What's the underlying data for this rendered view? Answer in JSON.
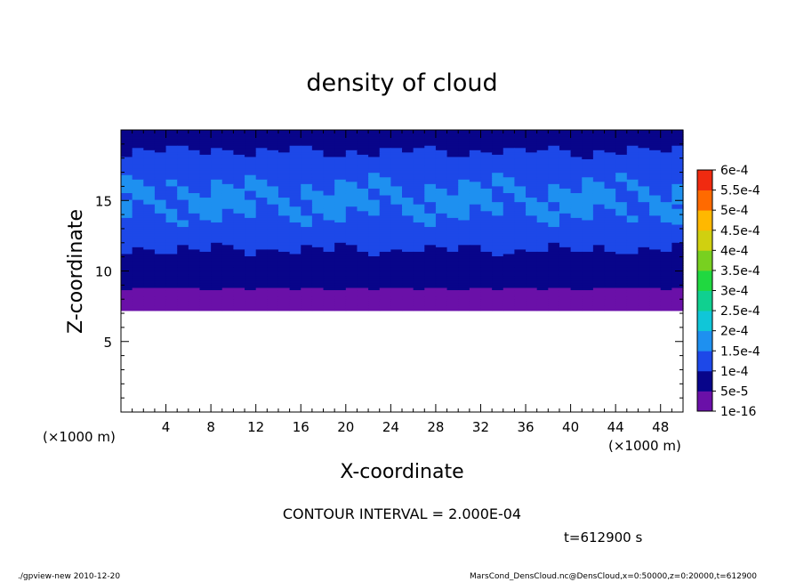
{
  "chart_data": {
    "type": "heatmap",
    "title": "density of cloud",
    "xlabel": "X-coordinate",
    "ylabel": "Z-coordinate",
    "x_unit": "(×1000 m)",
    "y_unit": "(×1000 m)",
    "xlim": [
      0,
      50
    ],
    "ylim": [
      0,
      20
    ],
    "x_ticks": [
      4,
      8,
      12,
      16,
      20,
      24,
      28,
      32,
      36,
      40,
      44,
      48
    ],
    "y_ticks": [
      5,
      10,
      15
    ],
    "cloud_base_z": 7.2,
    "colorbar": {
      "labels": [
        "1e-16",
        "5e-5",
        "1e-4",
        "1.5e-4",
        "2e-4",
        "2.5e-4",
        "3e-4",
        "3.5e-4",
        "4e-4",
        "4.5e-4",
        "5e-4",
        "5.5e-4",
        "6e-4"
      ],
      "levels": [
        1e-16,
        5e-05,
        0.0001,
        0.00015,
        0.0002,
        0.00025,
        0.0003,
        0.00035,
        0.0004,
        0.00045,
        0.0005,
        0.00055,
        0.0006
      ],
      "colors": [
        "#6a10a8",
        "#08058a",
        "#1d48e8",
        "#1e90f0",
        "#10c6d8",
        "#10d090",
        "#20d840",
        "#78d020",
        "#d0d010",
        "#ffb800",
        "#ff6a00",
        "#f02a10",
        "#f87e80"
      ]
    },
    "profile": [
      {
        "z": 20.0,
        "value": 8e-05
      },
      {
        "z": 19.0,
        "value": 9e-05
      },
      {
        "z": 18.0,
        "value": 0.00011
      },
      {
        "z": 17.0,
        "value": 0.000135
      },
      {
        "z": 16.0,
        "value": 0.00015
      },
      {
        "z": 15.0,
        "value": 0.000155
      },
      {
        "z": 14.0,
        "value": 0.00015
      },
      {
        "z": 13.0,
        "value": 0.000135
      },
      {
        "z": 12.0,
        "value": 0.00011
      },
      {
        "z": 11.0,
        "value": 9e-05
      },
      {
        "z": 10.0,
        "value": 7.5e-05
      },
      {
        "z": 9.0,
        "value": 6e-05
      },
      {
        "z": 8.5,
        "value": 4e-05
      },
      {
        "z": 8.0,
        "value": 2e-05
      },
      {
        "z": 7.6,
        "value": 1e-05
      },
      {
        "z": 7.2,
        "value": 1e-16
      }
    ]
  },
  "contour_interval": "CONTOUR INTERVAL = 2.000E-04",
  "time_label": "t=612900 s",
  "footer_left": "./gpview-new  2010-12-20",
  "footer_right": "MarsCond_DensCloud.nc@DensCloud,x=0:50000,z=0:20000,t=612900",
  "colors": {
    "frame": "#000000",
    "background": "#ffffff"
  }
}
